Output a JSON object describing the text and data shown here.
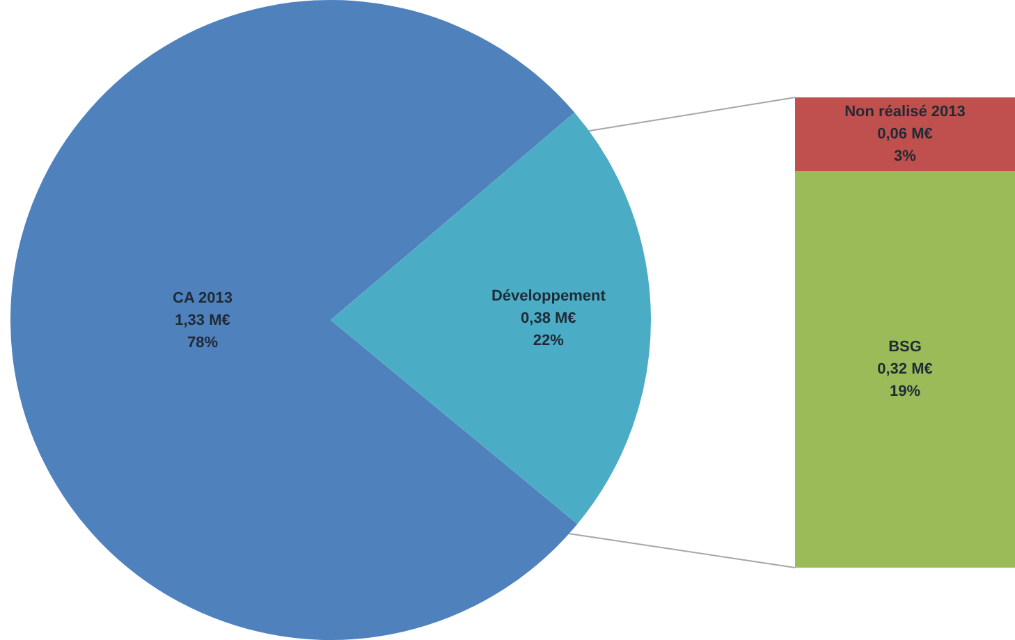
{
  "chart_data": [
    {
      "type": "pie",
      "categories": [
        "CA 2013",
        "Développement"
      ],
      "values": [
        1.33,
        0.38
      ],
      "colors": [
        "#4f81bd",
        "#4bacc6"
      ],
      "value_labels": [
        "1,33 M€\n78%",
        "0,38 M€\n22%"
      ]
    },
    {
      "type": "bar",
      "stacked": true,
      "categories": [
        null
      ],
      "tick_labels": false,
      "series": [
        {
          "name": "BSG",
          "color": "#9bbb59",
          "values": [
            0.32
          ],
          "value_labels": [
            "0,32 M€\n19%"
          ]
        },
        {
          "name": "Non réalisé 2013",
          "color": "#c0504d",
          "values": [
            0.06
          ],
          "value_labels": [
            "0,06 M€\n3%"
          ]
        }
      ]
    }
  ]
}
